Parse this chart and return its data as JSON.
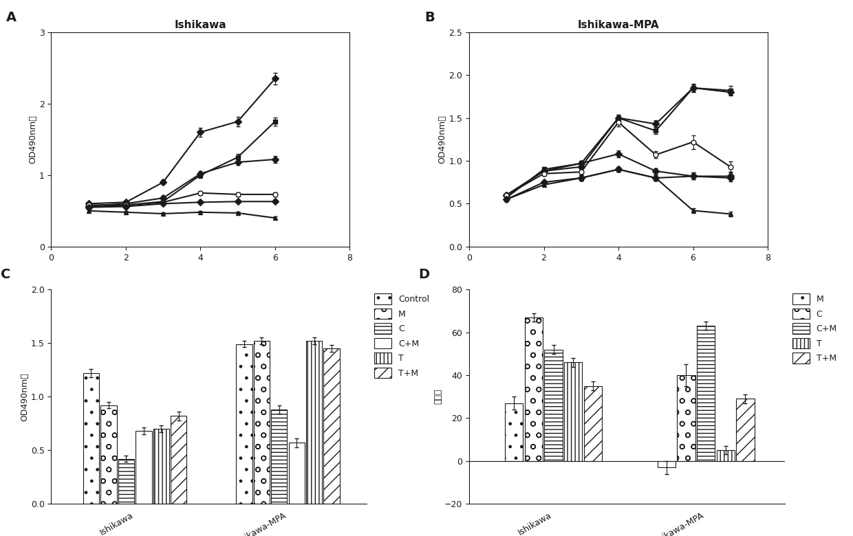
{
  "panel_A": {
    "title": "Ishikawa",
    "ylabel": "OD490nm値",
    "xlim": [
      0,
      8
    ],
    "ylim": [
      0,
      3
    ],
    "yticks": [
      0,
      1,
      2,
      3
    ],
    "xticks": [
      0,
      2,
      4,
      6,
      8
    ],
    "series": {
      "Con": {
        "x": [
          1,
          2,
          3,
          4,
          5,
          6
        ],
        "y": [
          0.6,
          0.62,
          0.9,
          1.6,
          1.75,
          2.35
        ],
        "yerr": [
          0.02,
          0.02,
          0.03,
          0.06,
          0.07,
          0.08
        ]
      },
      "M": {
        "x": [
          1,
          2,
          3,
          4,
          5,
          6
        ],
        "y": [
          0.55,
          0.58,
          0.63,
          1.0,
          1.25,
          1.75
        ],
        "yerr": [
          0.02,
          0.02,
          0.03,
          0.04,
          0.05,
          0.06
        ]
      },
      "C": {
        "x": [
          1,
          2,
          3,
          4,
          5,
          6
        ],
        "y": [
          0.5,
          0.48,
          0.46,
          0.48,
          0.47,
          0.4
        ],
        "yerr": [
          0.02,
          0.02,
          0.02,
          0.02,
          0.02,
          0.02
        ]
      },
      "C+M": {
        "x": [
          1,
          2,
          3,
          4,
          5,
          6
        ],
        "y": [
          0.57,
          0.6,
          0.68,
          1.02,
          1.18,
          1.22
        ],
        "yerr": [
          0.02,
          0.02,
          0.03,
          0.04,
          0.04,
          0.05
        ]
      },
      "T": {
        "x": [
          1,
          2,
          3,
          4,
          5,
          6
        ],
        "y": [
          0.58,
          0.58,
          0.62,
          0.75,
          0.73,
          0.73
        ],
        "yerr": [
          0.02,
          0.02,
          0.02,
          0.03,
          0.03,
          0.03
        ]
      },
      "T+M": {
        "x": [
          1,
          2,
          3,
          4,
          5,
          6
        ],
        "y": [
          0.55,
          0.56,
          0.6,
          0.62,
          0.63,
          0.63
        ],
        "yerr": [
          0.02,
          0.02,
          0.02,
          0.02,
          0.02,
          0.02
        ]
      }
    },
    "markers": {
      "Con": "D",
      "M": "s",
      "C": "^",
      "C+M": "D",
      "T": "o",
      "T+M": "D"
    },
    "filled": {
      "Con": true,
      "M": true,
      "C": true,
      "C+M": true,
      "T": false,
      "T+M": true
    },
    "order": [
      "Con",
      "M",
      "C+M",
      "T",
      "T+M",
      "C"
    ]
  },
  "panel_B": {
    "title": "Ishikawa-MPA",
    "ylabel": "OD490nm値",
    "xlim": [
      0,
      8
    ],
    "ylim": [
      0.0,
      2.5
    ],
    "yticks": [
      0.0,
      0.5,
      1.0,
      1.5,
      2.0,
      2.5
    ],
    "xticks": [
      0,
      2,
      4,
      6,
      8
    ],
    "series": {
      "Con": {
        "x": [
          1,
          2,
          3,
          4,
          5,
          6,
          7
        ],
        "y": [
          0.6,
          0.88,
          0.93,
          1.5,
          1.43,
          1.85,
          1.8
        ],
        "yerr": [
          0.02,
          0.03,
          0.03,
          0.04,
          0.04,
          0.04,
          0.04
        ]
      },
      "M": {
        "x": [
          1,
          2,
          3,
          4,
          5,
          6,
          7
        ],
        "y": [
          0.57,
          0.9,
          0.97,
          1.5,
          1.35,
          1.85,
          1.82
        ],
        "yerr": [
          0.02,
          0.03,
          0.03,
          0.04,
          0.04,
          0.05,
          0.05
        ]
      },
      "C": {
        "x": [
          1,
          2,
          3,
          4,
          5,
          6,
          7
        ],
        "y": [
          0.55,
          0.72,
          0.8,
          0.9,
          0.8,
          0.42,
          0.38
        ],
        "yerr": [
          0.02,
          0.02,
          0.03,
          0.03,
          0.03,
          0.03,
          0.03
        ]
      },
      "C+M": {
        "x": [
          1,
          2,
          3,
          4,
          5,
          6,
          7
        ],
        "y": [
          0.6,
          0.88,
          0.97,
          1.08,
          0.88,
          0.82,
          0.82
        ],
        "yerr": [
          0.02,
          0.03,
          0.03,
          0.04,
          0.03,
          0.04,
          0.04
        ]
      },
      "T": {
        "x": [
          1,
          2,
          3,
          4,
          5,
          6,
          7
        ],
        "y": [
          0.6,
          0.85,
          0.87,
          1.45,
          1.07,
          1.22,
          0.93
        ],
        "yerr": [
          0.02,
          0.03,
          0.03,
          0.05,
          0.04,
          0.08,
          0.06
        ]
      },
      "T+M": {
        "x": [
          1,
          2,
          3,
          4,
          5,
          6,
          7
        ],
        "y": [
          0.55,
          0.75,
          0.8,
          0.9,
          0.8,
          0.82,
          0.8
        ],
        "yerr": [
          0.02,
          0.02,
          0.03,
          0.03,
          0.03,
          0.04,
          0.04
        ]
      }
    },
    "markers": {
      "Con": "D",
      "M": "s",
      "C": "^",
      "C+M": "D",
      "T": "o",
      "T+M": "D"
    },
    "filled": {
      "Con": true,
      "M": true,
      "C": true,
      "C+M": true,
      "T": false,
      "T+M": true
    },
    "order": [
      "Con",
      "M",
      "C+M",
      "T",
      "T+M",
      "C"
    ]
  },
  "panel_C": {
    "ylabel": "OD490nm値",
    "ylim": [
      0.0,
      2.0
    ],
    "yticks": [
      0.0,
      0.5,
      1.0,
      1.5,
      2.0
    ],
    "groups": [
      "Ishikawa",
      "Ishikawa-MPA"
    ],
    "categories": [
      "Control",
      "M",
      "C",
      "C+M",
      "T",
      "T+M"
    ],
    "data": {
      "Ishikawa": [
        1.22,
        0.92,
        0.42,
        0.68,
        0.7,
        0.82
      ],
      "Ishikawa-MPA": [
        1.49,
        1.52,
        0.88,
        0.57,
        1.52,
        1.45
      ]
    },
    "errors": {
      "Ishikawa": [
        0.04,
        0.03,
        0.03,
        0.03,
        0.03,
        0.04
      ],
      "Ishikawa-MPA": [
        0.03,
        0.03,
        0.04,
        0.04,
        0.03,
        0.03
      ]
    },
    "hatches": [
      ".",
      "o",
      "---",
      "",
      "|||",
      "//"
    ]
  },
  "panel_D": {
    "ylabel": "抑制率",
    "ylim": [
      -20,
      80
    ],
    "yticks": [
      -20,
      0,
      20,
      40,
      60,
      80
    ],
    "groups": [
      "Ishikawa",
      "Ishikawa-MPA"
    ],
    "categories": [
      "M",
      "C",
      "C+M",
      "T",
      "T+M"
    ],
    "data": {
      "Ishikawa": [
        27,
        67,
        52,
        46,
        35
      ],
      "Ishikawa-MPA": [
        -3,
        40,
        63,
        5,
        29
      ]
    },
    "errors": {
      "Ishikawa": [
        3,
        2,
        2,
        2,
        2
      ],
      "Ishikawa-MPA": [
        3,
        5,
        2,
        2,
        2
      ]
    },
    "hatches": [
      ".",
      "o",
      "---",
      "|||",
      "//"
    ]
  },
  "color": "#1a1a1a",
  "linewidth": 1.5
}
